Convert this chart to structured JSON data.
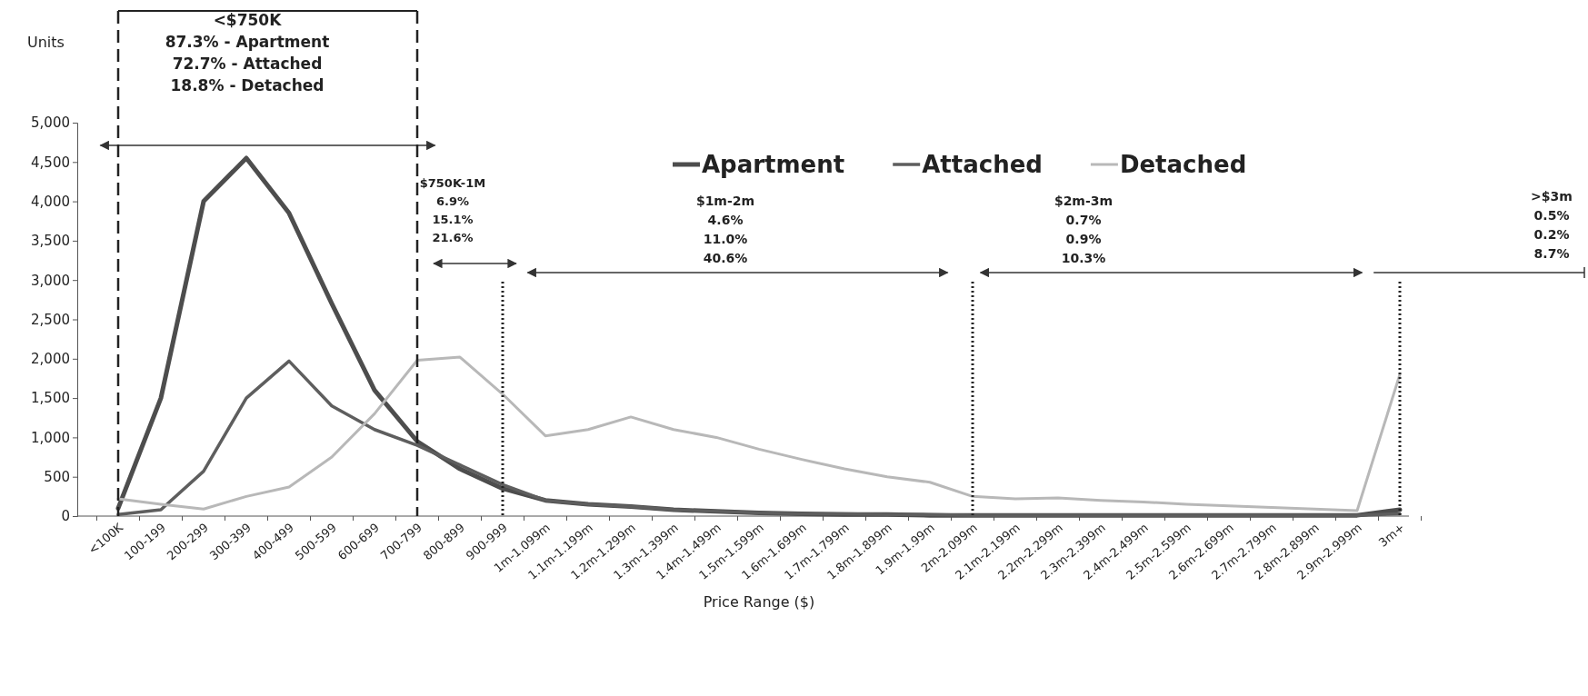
{
  "chart_data": {
    "type": "line",
    "xlabel": "Price Range ($)",
    "ylabel": "Units",
    "categories": [
      "<100K",
      "100-199",
      "200-299",
      "300-399",
      "400-499",
      "500-599",
      "600-699",
      "700-799",
      "800-899",
      "900-999",
      "1m-1.099m",
      "1.1m-1.199m",
      "1.2m-1.299m",
      "1.3m-1.399m",
      "1.4m-1.499m",
      "1.5m-1.599m",
      "1.6m-1.699m",
      "1.7m-1.799m",
      "1.8m-1.899m",
      "1.9m-1.99m",
      "2m-2.099m",
      "2.1m-2.199m",
      "2.2m-2.299m",
      "2.3m-2.399m",
      "2.4m-2.499m",
      "2.5m-2.599m",
      "2.6m-2.699m",
      "2.7m-2.799m",
      "2.8m-2.899m",
      "2.9m-2.999m",
      "3m+"
    ],
    "series": [
      {
        "name": "Apartment",
        "color": "#4d4d4d",
        "values": [
          100,
          1500,
          4000,
          4550,
          3850,
          2700,
          1600,
          950,
          600,
          350,
          200,
          150,
          120,
          80,
          60,
          40,
          30,
          20,
          20,
          10,
          10,
          10,
          10,
          10,
          10,
          10,
          10,
          10,
          10,
          10,
          80
        ]
      },
      {
        "name": "Attached",
        "color": "#5e5e5e",
        "values": [
          20,
          80,
          570,
          1500,
          1970,
          1400,
          1100,
          900,
          650,
          400,
          200,
          150,
          120,
          80,
          60,
          40,
          30,
          30,
          20,
          20,
          10,
          10,
          10,
          10,
          10,
          10,
          10,
          10,
          10,
          10,
          30
        ]
      },
      {
        "name": "Detached",
        "color": "#b8b8b8",
        "values": [
          220,
          150,
          90,
          250,
          370,
          750,
          1300,
          1980,
          2020,
          1550,
          1020,
          1100,
          1260,
          1100,
          1000,
          850,
          720,
          600,
          500,
          430,
          250,
          220,
          230,
          200,
          180,
          150,
          130,
          110,
          90,
          70,
          1800
        ]
      }
    ],
    "ylim": [
      0,
      5000
    ],
    "yticks": [
      {
        "value": 0,
        "label": "0"
      },
      {
        "value": 500,
        "label": "500"
      },
      {
        "value": 1000,
        "label": "1,000"
      },
      {
        "value": 1500,
        "label": "1,500"
      },
      {
        "value": 2000,
        "label": "2,000"
      },
      {
        "value": 2500,
        "label": "2,500"
      },
      {
        "value": 3000,
        "label": "3,000"
      },
      {
        "value": 3500,
        "label": "3,500"
      },
      {
        "value": 4000,
        "label": "4,000"
      },
      {
        "value": 4500,
        "label": "4,500"
      },
      {
        "value": 5000,
        "label": "5,000"
      }
    ],
    "ref_lines": [
      {
        "axis": "x",
        "value": "<100K",
        "line_style": "dashed",
        "color": "#222222"
      },
      {
        "axis": "x",
        "value": "700-799",
        "line_style": "dashed",
        "color": "#222222"
      },
      {
        "axis": "x",
        "value": "900-999",
        "line_style": "dotted",
        "color": "#222222"
      },
      {
        "axis": "x",
        "value": "2m-2.099m",
        "line_style": "dotted",
        "color": "#222222"
      },
      {
        "axis": "x",
        "value": "3m+",
        "line_style": "dotted",
        "color": "#222222"
      }
    ],
    "legend": "top",
    "grid": false,
    "marker": "none",
    "line_style": "solid",
    "annotations": [
      "<$750K\n87.3% - Apartment\n72.7% - Attached\n18.8% - Detached",
      "$750K-1M\n6.9%\n15.1%\n21.6%",
      "$1m-2m\n4.6%\n11.0%\n40.6%",
      "$2m-3m\n0.7%\n0.9%\n10.3%",
      ">$3m\n0.5%\n0.2%\n8.7%"
    ]
  }
}
